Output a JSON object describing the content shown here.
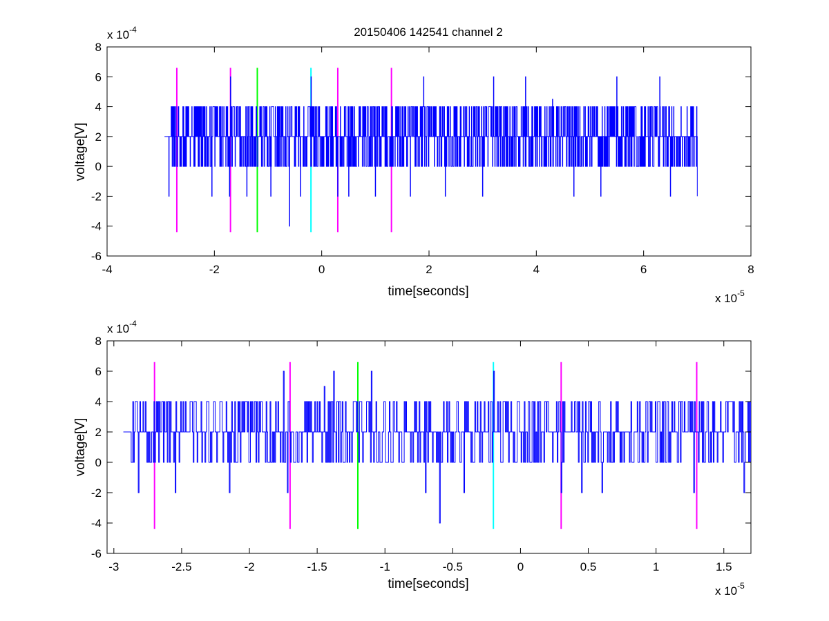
{
  "chart_data": [
    {
      "type": "line",
      "title": "20150406 142541 channel 2",
      "xlabel": "time[seconds]",
      "ylabel": "voltage[V]",
      "x_multiplier": "x 10",
      "x_exponent": "-5",
      "y_multiplier": "x 10",
      "y_exponent": "-4",
      "xlim": [
        -4,
        8
      ],
      "ylim": [
        -6,
        8
      ],
      "xticks": [
        -4,
        -2,
        0,
        2,
        4,
        6,
        8
      ],
      "yticks": [
        -6,
        -4,
        -2,
        0,
        2,
        4,
        6,
        8
      ],
      "grid": false,
      "series": [
        {
          "color": "#0000ff",
          "signal": {
            "x_start": -2.93,
            "x_end": 7.0,
            "steps": 1600,
            "base": 2,
            "levels": [
              0,
              2,
              4
            ],
            "spikes": [
              {
                "x": -2.85,
                "y": -2
              },
              {
                "x": -2.05,
                "y": -2
              },
              {
                "x": -1.72,
                "y": -2
              },
              {
                "x": -1.7,
                "y": 6
              },
              {
                "x": -1.4,
                "y": -2
              },
              {
                "x": -0.95,
                "y": -2
              },
              {
                "x": -0.6,
                "y": -4
              },
              {
                "x": -0.4,
                "y": -2
              },
              {
                "x": -0.2,
                "y": 6
              },
              {
                "x": 0.3,
                "y": -2
              },
              {
                "x": 0.5,
                "y": -2
              },
              {
                "x": 1.0,
                "y": -2
              },
              {
                "x": 1.9,
                "y": 6
              },
              {
                "x": 1.65,
                "y": -2
              },
              {
                "x": 2.3,
                "y": -2
              },
              {
                "x": 3.2,
                "y": 6
              },
              {
                "x": 3.8,
                "y": 6
              },
              {
                "x": 3.0,
                "y": -2
              },
              {
                "x": 4.3,
                "y": 4.5
              },
              {
                "x": 4.7,
                "y": -2
              },
              {
                "x": 5.5,
                "y": 6
              },
              {
                "x": 6.3,
                "y": 6
              },
              {
                "x": 5.2,
                "y": -2
              },
              {
                "x": 6.5,
                "y": -2
              },
              {
                "x": 7.0,
                "y": -2
              }
            ]
          }
        }
      ],
      "markers": [
        {
          "x": -2.7,
          "color": "#ff00ff"
        },
        {
          "x": -1.7,
          "color": "#ff00ff"
        },
        {
          "x": -1.2,
          "color": "#00ff00"
        },
        {
          "x": -0.2,
          "color": "#00ffff"
        },
        {
          "x": 0.3,
          "color": "#ff00ff"
        },
        {
          "x": 1.3,
          "color": "#ff00ff"
        }
      ],
      "marker_ylim": [
        -4.4,
        6.6
      ]
    },
    {
      "type": "line",
      "title": "",
      "xlabel": "time[seconds]",
      "ylabel": "voltage[V]",
      "x_multiplier": "x 10",
      "x_exponent": "-5",
      "y_multiplier": "x 10",
      "y_exponent": "-4",
      "xlim": [
        -3.05,
        1.7
      ],
      "ylim": [
        -6,
        8
      ],
      "xticks": [
        -3,
        -2.5,
        -2,
        -1.5,
        -1,
        -0.5,
        0,
        0.5,
        1,
        1.5
      ],
      "yticks": [
        -6,
        -4,
        -2,
        0,
        2,
        4,
        6,
        8
      ],
      "grid": false,
      "series": [
        {
          "color": "#0000ff",
          "signal": {
            "x_start": -2.93,
            "x_end": 1.7,
            "steps": 800,
            "base": 2,
            "levels": [
              0,
              2,
              4
            ],
            "spikes": [
              {
                "x": -2.82,
                "y": -2
              },
              {
                "x": -2.55,
                "y": -2
              },
              {
                "x": -2.15,
                "y": -2
              },
              {
                "x": -1.72,
                "y": -2
              },
              {
                "x": -1.75,
                "y": 6
              },
              {
                "x": -1.45,
                "y": 5
              },
              {
                "x": -1.38,
                "y": 6
              },
              {
                "x": -1.1,
                "y": 6
              },
              {
                "x": -0.7,
                "y": -2
              },
              {
                "x": -0.6,
                "y": -4
              },
              {
                "x": -0.42,
                "y": -2
              },
              {
                "x": -0.2,
                "y": 6
              },
              {
                "x": 0.3,
                "y": -2
              },
              {
                "x": 0.45,
                "y": -2
              },
              {
                "x": 0.6,
                "y": -2
              },
              {
                "x": 1.28,
                "y": -2
              },
              {
                "x": 1.65,
                "y": -2
              }
            ]
          }
        }
      ],
      "markers": [
        {
          "x": -2.7,
          "color": "#ff00ff"
        },
        {
          "x": -1.7,
          "color": "#ff00ff"
        },
        {
          "x": -1.2,
          "color": "#00ff00"
        },
        {
          "x": -0.2,
          "color": "#00ffff"
        },
        {
          "x": 0.3,
          "color": "#ff00ff"
        },
        {
          "x": 1.3,
          "color": "#ff00ff"
        }
      ],
      "marker_ylim": [
        -4.4,
        6.6
      ]
    }
  ]
}
